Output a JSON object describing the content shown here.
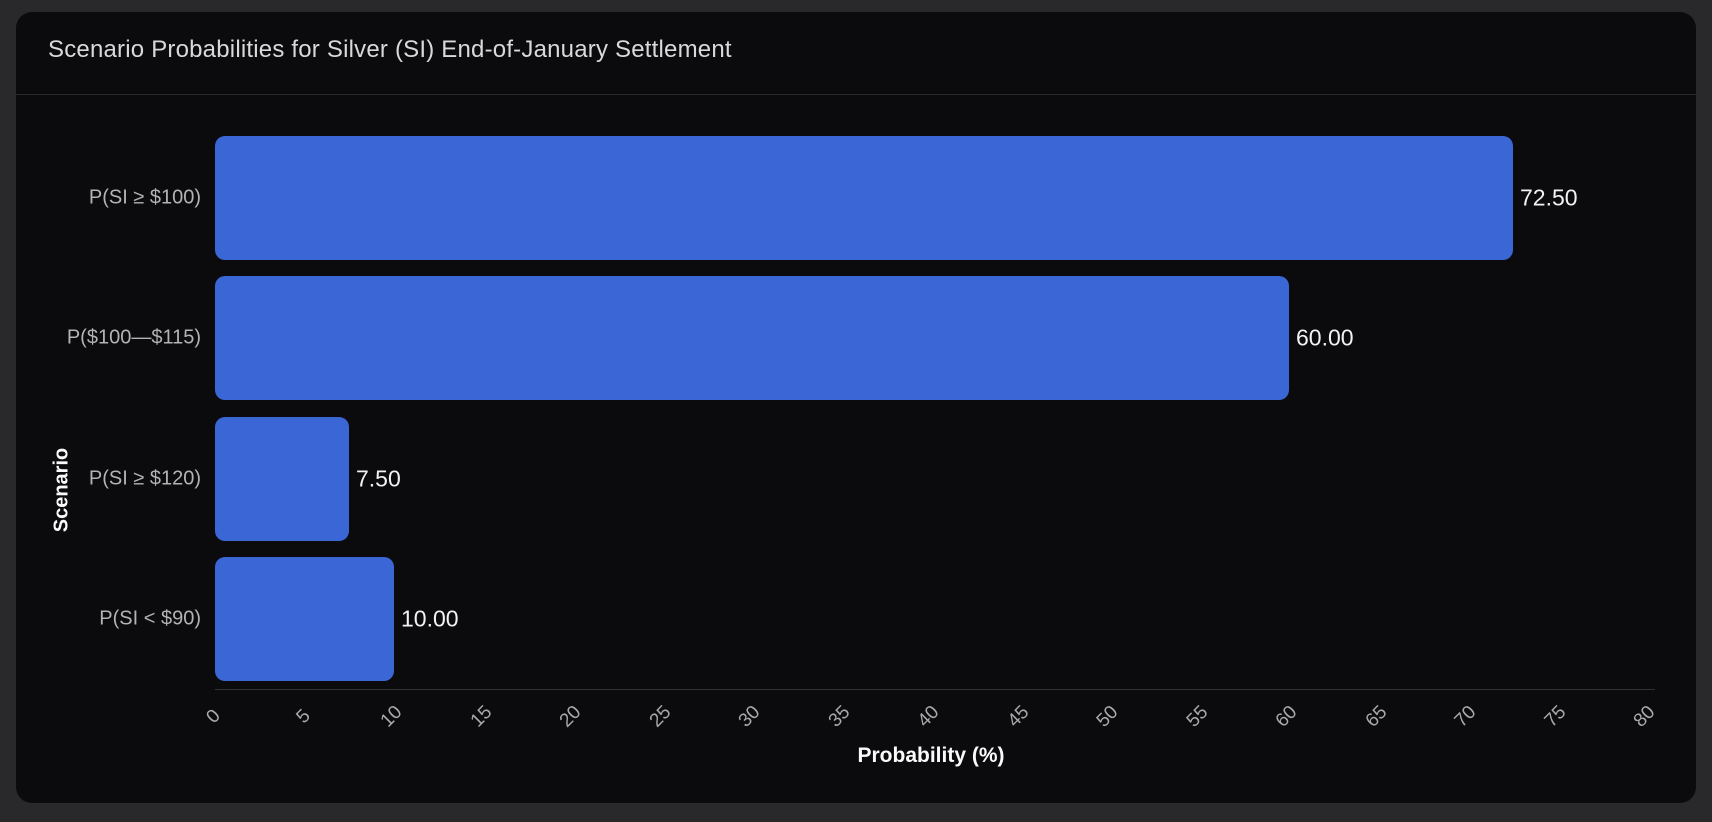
{
  "card": {
    "title": "Scenario Probabilities for Silver (SI) End-of-January Settlement"
  },
  "chart_data": {
    "type": "bar",
    "orientation": "horizontal",
    "title": "Scenario Probabilities for Silver (SI) End-of-January Settlement",
    "categories": [
      "P(SI ≥ $100)",
      "P($100—$115)",
      "P(SI ≥ $120)",
      "P(SI < $90)"
    ],
    "values": [
      72.5,
      60.0,
      7.5,
      10.0
    ],
    "value_labels": [
      "72.50",
      "60.00",
      "7.50",
      "10.00"
    ],
    "xlabel": "Probability (%)",
    "ylabel": "Scenario",
    "xlim": [
      0,
      80
    ],
    "xticks": [
      0,
      5,
      10,
      15,
      20,
      25,
      30,
      35,
      40,
      45,
      50,
      55,
      60,
      65,
      70,
      75,
      80
    ],
    "grid": false,
    "legend": "none",
    "bar_color": "#3b66d6",
    "background_color": "#0b0b0d",
    "page_background_color": "#29292b",
    "label_color": "#b3b3b6",
    "value_label_color": "#f2f2f2"
  }
}
